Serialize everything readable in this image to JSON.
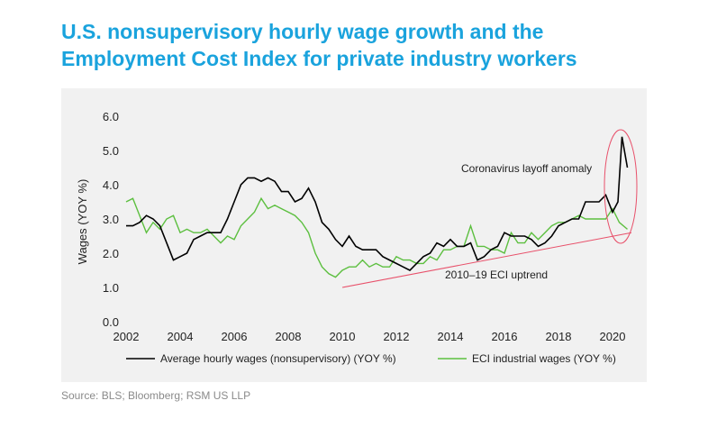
{
  "title": {
    "line1": "U.S. nonsupervisory hourly wage growth and the",
    "line2": "Employment Cost Index for private industry workers"
  },
  "source": "Source: BLS; Bloomberg; RSM US LLP",
  "colors": {
    "title": "#1aa3dd",
    "panel_bg": "#f1f1f1",
    "wages_line": "#000000",
    "eci_line": "#5cbf3f",
    "trend_line": "#e8506a",
    "anomaly_ellipse": "#e8506a"
  },
  "chart_data": {
    "type": "line",
    "xlabel": "",
    "ylabel": "Wages (YOY %)",
    "xlim": [
      2002,
      2020.7
    ],
    "ylim": [
      0,
      6
    ],
    "x_ticks": [
      "2002",
      "2004",
      "2006",
      "2008",
      "2010",
      "2012",
      "2014",
      "2016",
      "2018",
      "2020"
    ],
    "y_ticks": [
      "0.0",
      "1.0",
      "2.0",
      "3.0",
      "4.0",
      "5.0",
      "6.0"
    ],
    "grid": false,
    "legend_position": "bottom",
    "series": [
      {
        "name": "Average hourly wages (nonsupervisory) (YOY %)",
        "color": "#000000",
        "x": [
          2002.0,
          2002.25,
          2002.5,
          2002.75,
          2003.0,
          2003.25,
          2003.5,
          2003.75,
          2004.0,
          2004.25,
          2004.5,
          2004.75,
          2005.0,
          2005.25,
          2005.5,
          2005.75,
          2006.0,
          2006.25,
          2006.5,
          2006.75,
          2007.0,
          2007.25,
          2007.5,
          2007.75,
          2008.0,
          2008.25,
          2008.5,
          2008.75,
          2009.0,
          2009.25,
          2009.5,
          2009.75,
          2010.0,
          2010.25,
          2010.5,
          2010.75,
          2011.0,
          2011.25,
          2011.5,
          2011.75,
          2012.0,
          2012.25,
          2012.5,
          2012.75,
          2013.0,
          2013.25,
          2013.5,
          2013.75,
          2014.0,
          2014.25,
          2014.5,
          2014.75,
          2015.0,
          2015.25,
          2015.5,
          2015.75,
          2016.0,
          2016.25,
          2016.5,
          2016.75,
          2017.0,
          2017.25,
          2017.5,
          2017.75,
          2018.0,
          2018.25,
          2018.5,
          2018.75,
          2019.0,
          2019.25,
          2019.5,
          2019.75,
          2020.0,
          2020.2,
          2020.35,
          2020.55
        ],
        "y": [
          2.8,
          2.8,
          2.9,
          3.1,
          3.0,
          2.8,
          2.3,
          1.8,
          1.9,
          2.0,
          2.4,
          2.5,
          2.6,
          2.6,
          2.6,
          3.0,
          3.5,
          4.0,
          4.2,
          4.2,
          4.1,
          4.2,
          4.1,
          3.8,
          3.8,
          3.5,
          3.6,
          3.9,
          3.5,
          2.9,
          2.7,
          2.4,
          2.2,
          2.5,
          2.2,
          2.1,
          2.1,
          2.1,
          1.9,
          1.8,
          1.7,
          1.6,
          1.5,
          1.7,
          1.9,
          2.0,
          2.3,
          2.2,
          2.4,
          2.2,
          2.2,
          2.3,
          1.8,
          1.9,
          2.1,
          2.2,
          2.6,
          2.5,
          2.5,
          2.5,
          2.4,
          2.2,
          2.3,
          2.5,
          2.8,
          2.9,
          3.0,
          3.0,
          3.5,
          3.5,
          3.5,
          3.7,
          3.2,
          3.5,
          5.4,
          4.5
        ]
      },
      {
        "name": "ECI industrial wages (YOY %)",
        "color": "#5cbf3f",
        "x": [
          2002.0,
          2002.25,
          2002.5,
          2002.75,
          2003.0,
          2003.25,
          2003.5,
          2003.75,
          2004.0,
          2004.25,
          2004.5,
          2004.75,
          2005.0,
          2005.25,
          2005.5,
          2005.75,
          2006.0,
          2006.25,
          2006.5,
          2006.75,
          2007.0,
          2007.25,
          2007.5,
          2007.75,
          2008.0,
          2008.25,
          2008.5,
          2008.75,
          2009.0,
          2009.25,
          2009.5,
          2009.75,
          2010.0,
          2010.25,
          2010.5,
          2010.75,
          2011.0,
          2011.25,
          2011.5,
          2011.75,
          2012.0,
          2012.25,
          2012.5,
          2012.75,
          2013.0,
          2013.25,
          2013.5,
          2013.75,
          2014.0,
          2014.25,
          2014.5,
          2014.75,
          2015.0,
          2015.25,
          2015.5,
          2015.75,
          2016.0,
          2016.25,
          2016.5,
          2016.75,
          2017.0,
          2017.25,
          2017.5,
          2017.75,
          2018.0,
          2018.25,
          2018.5,
          2018.75,
          2019.0,
          2019.25,
          2019.5,
          2019.75,
          2020.0,
          2020.25,
          2020.55
        ],
        "y": [
          3.5,
          3.6,
          3.1,
          2.6,
          2.9,
          2.7,
          3.0,
          3.1,
          2.6,
          2.7,
          2.6,
          2.6,
          2.7,
          2.5,
          2.3,
          2.5,
          2.4,
          2.8,
          3.0,
          3.2,
          3.6,
          3.3,
          3.4,
          3.3,
          3.2,
          3.1,
          2.9,
          2.6,
          2.0,
          1.6,
          1.4,
          1.3,
          1.5,
          1.6,
          1.6,
          1.8,
          1.6,
          1.7,
          1.6,
          1.6,
          1.9,
          1.8,
          1.8,
          1.7,
          1.7,
          1.9,
          1.8,
          2.1,
          2.1,
          2.2,
          2.2,
          2.8,
          2.2,
          2.2,
          2.1,
          2.1,
          2.0,
          2.6,
          2.3,
          2.3,
          2.6,
          2.4,
          2.6,
          2.8,
          2.9,
          2.9,
          3.0,
          3.1,
          3.0,
          3.0,
          3.0,
          3.0,
          3.3,
          2.9,
          2.7
        ]
      }
    ],
    "trend_line": {
      "x": [
        2010,
        2020.7
      ],
      "y": [
        1.0,
        2.6
      ]
    },
    "annotations": {
      "anomaly": "Coronavirus layoff anomaly",
      "trend": "2010–19 ECI uptrend"
    }
  }
}
